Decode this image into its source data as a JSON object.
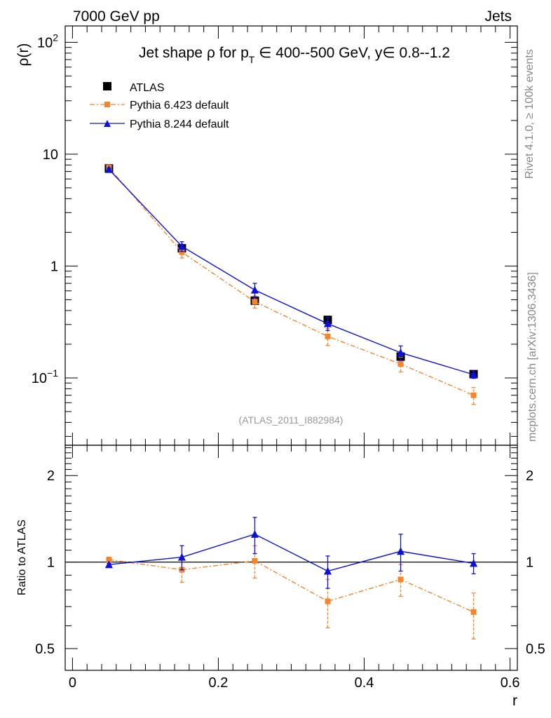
{
  "header": {
    "left": "7000 GeV pp",
    "right": "Jets"
  },
  "side": {
    "rivet": "Rivet 4.1.0, ≥ 100k events",
    "mcplots": "mcplots.cern.ch [arXiv:1306.3436]"
  },
  "chart_data": [
    {
      "type": "scatter",
      "panel": "main",
      "title": "Jet shape ρ for p_T ∈ 400--500 GeV, y∈ 0.8--1.2",
      "title_parts": {
        "pre": "Jet shape ρ for p",
        "sub": "T",
        "post": " ∈ 400--500 GeV, y∈ 0.8--1.2"
      },
      "ylabel": "ρ(r)",
      "yscale": "log",
      "ylim": [
        0.025,
        140
      ],
      "xlim": [
        -0.01,
        0.61
      ],
      "y_ticks": [
        {
          "value": 100,
          "base": "10",
          "exp": "2"
        },
        {
          "value": 10,
          "base": "10",
          "exp": ""
        },
        {
          "value": 1,
          "base": "1",
          "exp": ""
        },
        {
          "value": 0.1,
          "base": "10",
          "exp": "−1"
        }
      ],
      "watermark": "(ATLAS_2011_I882984)",
      "legend_position": "top-left",
      "x": [
        0.05,
        0.15,
        0.25,
        0.35,
        0.45,
        0.55
      ],
      "series": [
        {
          "name": "ATLAS",
          "color": "#000000",
          "marker": "square",
          "line": "none",
          "values": [
            7.45,
            1.44,
            0.49,
            0.33,
            0.155,
            0.108
          ],
          "err_lo": [
            0.3,
            0.05,
            0.02,
            0.012,
            0.01,
            0.005
          ],
          "err_hi": [
            0.3,
            0.05,
            0.02,
            0.012,
            0.01,
            0.005
          ]
        },
        {
          "name": "Pythia 6.423 default",
          "color": "#f5852a",
          "marker": "square-small",
          "line": "dashdot",
          "values": [
            7.6,
            1.33,
            0.48,
            0.235,
            0.133,
            0.07
          ],
          "err_lo": [
            0.25,
            0.15,
            0.06,
            0.04,
            0.02,
            0.012
          ],
          "err_hi": [
            0.25,
            0.15,
            0.06,
            0.04,
            0.02,
            0.012
          ]
        },
        {
          "name": "Pythia 8.244 default",
          "color": "#0d10d6",
          "marker": "triangle",
          "line": "solid",
          "values": [
            7.3,
            1.5,
            0.61,
            0.305,
            0.168,
            0.107
          ],
          "err_lo": [
            0.2,
            0.15,
            0.09,
            0.04,
            0.025,
            0.008
          ],
          "err_hi": [
            0.2,
            0.15,
            0.09,
            0.04,
            0.025,
            0.008
          ]
        }
      ]
    },
    {
      "type": "scatter",
      "panel": "ratio",
      "ylabel": "Ratio to ATLAS",
      "xlabel": "r",
      "yscale": "log",
      "ylim": [
        0.42,
        2.55
      ],
      "reference_line": 1,
      "y_ticks": [
        {
          "value": 2,
          "label": "2"
        },
        {
          "value": 1,
          "label": "1"
        },
        {
          "value": 0.5,
          "label": "0.5"
        }
      ],
      "x_ticks": [
        {
          "value": 0,
          "label": "0"
        },
        {
          "value": 0.2,
          "label": "0.2"
        },
        {
          "value": 0.4,
          "label": "0.4"
        },
        {
          "value": 0.6,
          "label": "0.6"
        }
      ],
      "x": [
        0.05,
        0.15,
        0.25,
        0.35,
        0.45,
        0.55
      ],
      "series": [
        {
          "name": "Pythia 6.423 default",
          "color": "#f5852a",
          "marker": "square-small",
          "line": "dashdot",
          "values": [
            1.02,
            0.94,
            1.01,
            0.73,
            0.87,
            0.67
          ],
          "err_lo": [
            0.02,
            0.09,
            0.13,
            0.14,
            0.11,
            0.13
          ],
          "err_hi": [
            0.02,
            0.09,
            0.13,
            0.14,
            0.11,
            0.11
          ]
        },
        {
          "name": "Pythia 8.244 default",
          "color": "#0d10d6",
          "marker": "triangle",
          "line": "solid",
          "values": [
            0.98,
            1.04,
            1.25,
            0.93,
            1.09,
            0.99
          ],
          "err_lo": [
            0.01,
            0.1,
            0.18,
            0.12,
            0.16,
            0.08
          ],
          "err_hi": [
            0.01,
            0.1,
            0.18,
            0.12,
            0.16,
            0.08
          ]
        }
      ]
    }
  ]
}
